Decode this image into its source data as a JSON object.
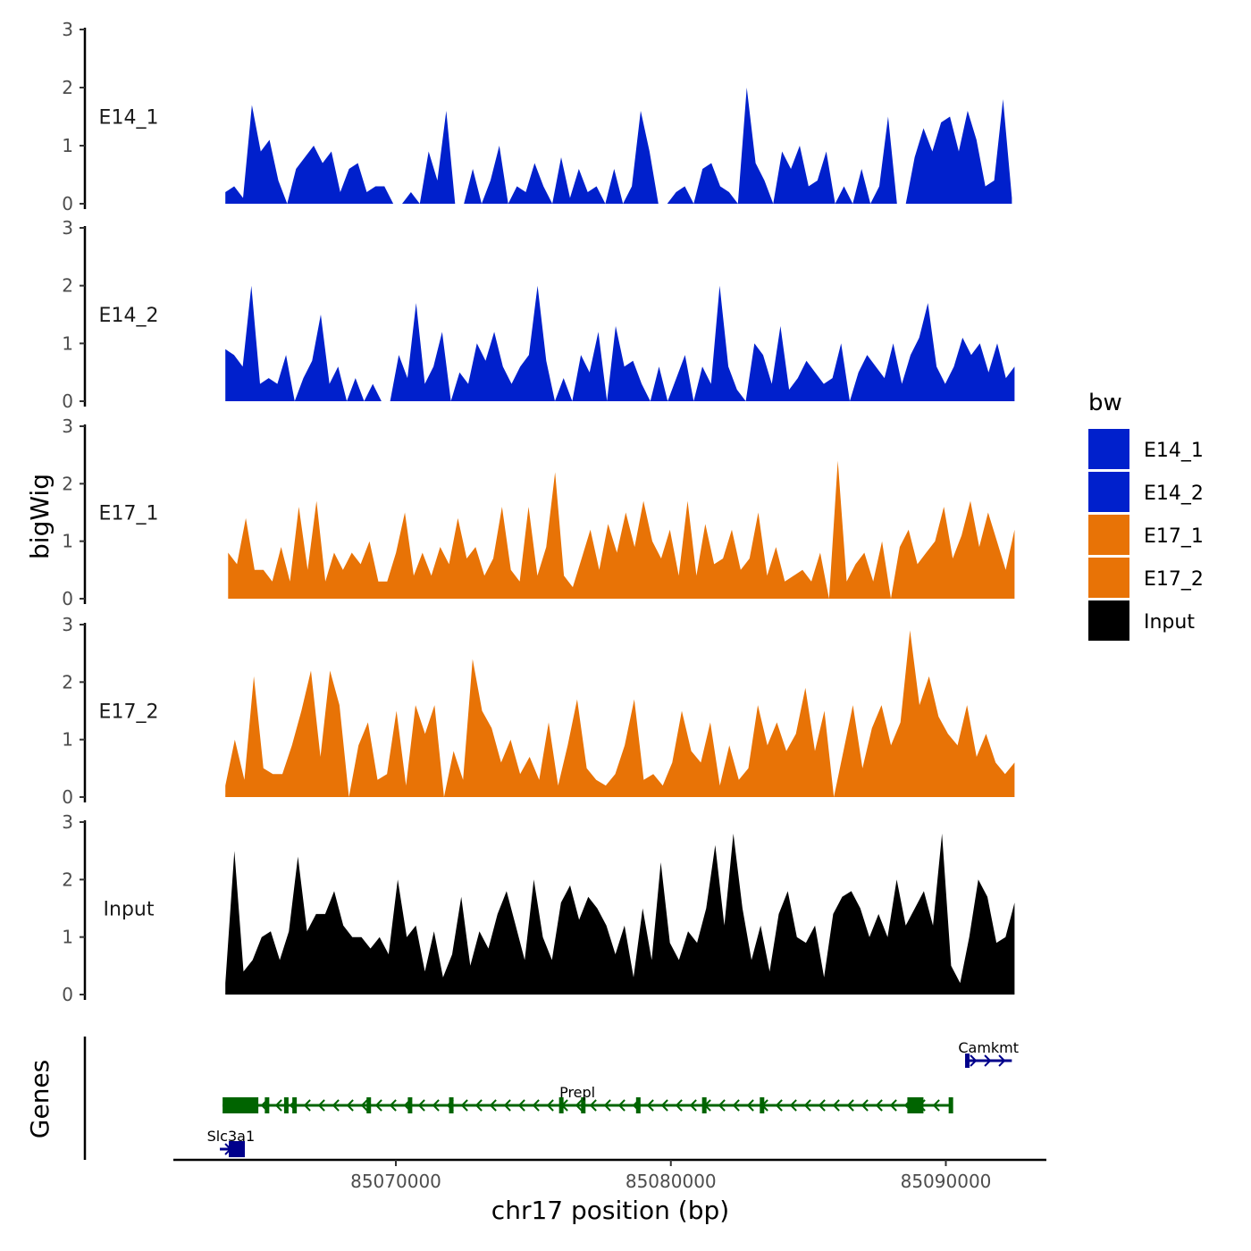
{
  "chart_data": {
    "type": "area",
    "title": "",
    "xlabel": "chr17 position (bp)",
    "ylabel": "bigWig",
    "gene_panel_label": "Genes",
    "xlim": [
      85062300,
      85093800
    ],
    "x_ticks": [
      85070000,
      85080000,
      85090000
    ],
    "x_tick_labels": [
      "85070000",
      "85080000",
      "85090000"
    ],
    "ylim": [
      0,
      3
    ],
    "y_ticks": [
      0,
      1,
      2,
      3
    ],
    "y_tick_labels": [
      "0",
      "1",
      "2",
      "3"
    ],
    "legend": {
      "title": "bw",
      "position": "right",
      "entries": [
        {
          "label": "E14_1",
          "color": "#0020CC"
        },
        {
          "label": "E14_2",
          "color": "#0020CC"
        },
        {
          "label": "E17_1",
          "color": "#E87306"
        },
        {
          "label": "E17_2",
          "color": "#E87306"
        },
        {
          "label": "Input",
          "color": "#000000"
        }
      ]
    },
    "tracks": [
      {
        "name": "E14_1",
        "color": "#0020CC",
        "x_start": 85063800,
        "x_end": 85092400,
        "values": [
          0.2,
          0.3,
          0.1,
          1.7,
          0.9,
          1.1,
          0.4,
          0,
          0.6,
          0.8,
          1.0,
          0.7,
          0.9,
          0.2,
          0.6,
          0.7,
          0.2,
          0.3,
          0.3,
          0,
          0,
          0.2,
          0,
          0.9,
          0.4,
          1.6,
          0,
          0,
          0.6,
          0,
          0.4,
          1.0,
          0,
          0.3,
          0.2,
          0.7,
          0.3,
          0,
          0.8,
          0.1,
          0.6,
          0.2,
          0.3,
          0,
          0.6,
          0,
          0.3,
          1.6,
          0.9,
          0,
          0,
          0.2,
          0.3,
          0,
          0.6,
          0.7,
          0.3,
          0.2,
          0,
          2.0,
          0.7,
          0.4,
          0,
          0.9,
          0.6,
          1.0,
          0.3,
          0.4,
          0.9,
          0,
          0.3,
          0,
          0.6,
          0,
          0.3,
          1.5,
          0,
          0,
          0.8,
          1.3,
          0.9,
          1.4,
          1.5,
          0.9,
          1.6,
          1.1,
          0.3,
          0.4,
          1.8,
          0.1
        ]
      },
      {
        "name": "E14_2",
        "color": "#0020CC",
        "x_start": 85063800,
        "x_end": 85092500,
        "values": [
          0.9,
          0.8,
          0.6,
          2.0,
          0.3,
          0.4,
          0.3,
          0.8,
          0,
          0.4,
          0.7,
          1.5,
          0.3,
          0.6,
          0,
          0.4,
          0,
          0.3,
          0,
          0,
          0.8,
          0.4,
          1.7,
          0.3,
          0.6,
          1.2,
          0,
          0.5,
          0.3,
          1.0,
          0.7,
          1.2,
          0.6,
          0.3,
          0.6,
          0.8,
          2.0,
          0.7,
          0,
          0.4,
          0,
          0.8,
          0.5,
          1.2,
          0,
          1.3,
          0.6,
          0.7,
          0.3,
          0,
          0.6,
          0,
          0.4,
          0.8,
          0,
          0.6,
          0.3,
          2.0,
          0.6,
          0.2,
          0,
          1.0,
          0.8,
          0.3,
          1.3,
          0.2,
          0.4,
          0.7,
          0.5,
          0.3,
          0.4,
          1.0,
          0,
          0.5,
          0.8,
          0.6,
          0.4,
          1.0,
          0.3,
          0.8,
          1.1,
          1.7,
          0.6,
          0.3,
          0.6,
          1.1,
          0.8,
          1.0,
          0.5,
          1.0,
          0.4,
          0.6
        ]
      },
      {
        "name": "E17_1",
        "color": "#E87306",
        "x_start": 85063900,
        "x_end": 85092500,
        "values": [
          0.8,
          0.6,
          1.4,
          0.5,
          0.5,
          0.3,
          0.9,
          0.3,
          1.6,
          0.5,
          1.7,
          0.3,
          0.8,
          0.5,
          0.8,
          0.6,
          1.0,
          0.3,
          0.3,
          0.8,
          1.5,
          0.4,
          0.8,
          0.4,
          0.9,
          0.6,
          1.4,
          0.7,
          0.9,
          0.4,
          0.7,
          1.6,
          0.5,
          0.3,
          1.6,
          0.4,
          0.9,
          2.2,
          0.4,
          0.2,
          0.7,
          1.2,
          0.5,
          1.3,
          0.8,
          1.5,
          0.9,
          1.7,
          1.0,
          0.7,
          1.2,
          0.4,
          1.7,
          0.4,
          1.3,
          0.6,
          0.7,
          1.2,
          0.5,
          0.7,
          1.5,
          0.4,
          0.9,
          0.3,
          0.4,
          0.5,
          0.3,
          0.8,
          0,
          2.4,
          0.3,
          0.6,
          0.8,
          0.3,
          1.0,
          0,
          0.9,
          1.2,
          0.6,
          0.8,
          1.0,
          1.6,
          0.7,
          1.1,
          1.7,
          0.9,
          1.5,
          1.0,
          0.5,
          1.2
        ]
      },
      {
        "name": "E17_2",
        "color": "#E87306",
        "x_start": 85063800,
        "x_end": 85092500,
        "values": [
          0.2,
          1.0,
          0.3,
          2.1,
          0.5,
          0.4,
          0.4,
          0.9,
          1.5,
          2.2,
          0.7,
          2.2,
          1.6,
          0,
          0.9,
          1.3,
          0.3,
          0.4,
          1.5,
          0.2,
          1.6,
          1.1,
          1.6,
          0,
          0.8,
          0.3,
          2.4,
          1.5,
          1.2,
          0.6,
          1.0,
          0.4,
          0.7,
          0.3,
          1.3,
          0.2,
          0.9,
          1.7,
          0.5,
          0.3,
          0.2,
          0.4,
          0.9,
          1.7,
          0.3,
          0.4,
          0.2,
          0.6,
          1.5,
          0.8,
          0.6,
          1.3,
          0.2,
          0.9,
          0.3,
          0.5,
          1.6,
          0.9,
          1.3,
          0.8,
          1.1,
          1.9,
          0.8,
          1.5,
          0,
          0.8,
          1.6,
          0.5,
          1.2,
          1.6,
          0.9,
          1.3,
          2.9,
          1.6,
          2.1,
          1.4,
          1.1,
          0.9,
          1.6,
          0.7,
          1.1,
          0.6,
          0.4,
          0.6
        ]
      },
      {
        "name": "Input",
        "color": "#000000",
        "x_start": 85063800,
        "x_end": 85092500,
        "values": [
          0.2,
          2.5,
          0.4,
          0.6,
          1.0,
          1.1,
          0.6,
          1.1,
          2.4,
          1.1,
          1.4,
          1.4,
          1.8,
          1.2,
          1.0,
          1.0,
          0.8,
          1.0,
          0.7,
          2.0,
          1.0,
          1.2,
          0.4,
          1.1,
          0.3,
          0.7,
          1.7,
          0.5,
          1.1,
          0.8,
          1.4,
          1.8,
          1.2,
          0.6,
          2.0,
          1.0,
          0.6,
          1.6,
          1.9,
          1.3,
          1.7,
          1.5,
          1.2,
          0.7,
          1.2,
          0.3,
          1.5,
          0.6,
          2.3,
          0.9,
          0.6,
          1.1,
          0.9,
          1.5,
          2.6,
          1.2,
          2.8,
          1.5,
          0.6,
          1.2,
          0.4,
          1.4,
          1.8,
          1.0,
          0.9,
          1.2,
          0.3,
          1.4,
          1.7,
          1.8,
          1.5,
          1.0,
          1.4,
          1.0,
          2.0,
          1.2,
          1.5,
          1.8,
          1.2,
          2.8,
          0.5,
          0.2,
          1.0,
          2.0,
          1.7,
          0.9,
          1.0,
          1.6
        ]
      }
    ],
    "genes": [
      {
        "name": "Camkmt",
        "start": 85090700,
        "end": 85092400,
        "strand": "+",
        "color": "#00008B"
      },
      {
        "name": "Prepl",
        "start": 85063700,
        "end": 85090200,
        "strand": "-",
        "color": "#006400"
      },
      {
        "name": "Slc3a1",
        "start": 85063600,
        "end": 85064400,
        "strand": "+",
        "color": "#00008B"
      }
    ]
  }
}
